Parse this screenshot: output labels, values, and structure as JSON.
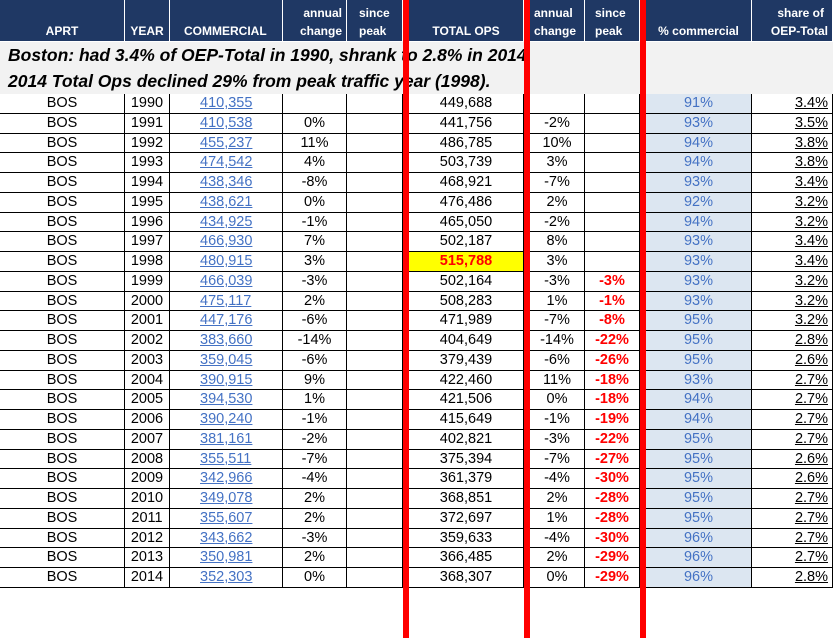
{
  "headers": {
    "aprt": {
      "line1": "",
      "line2": "APRT"
    },
    "year": {
      "line1": "",
      "line2": "YEAR"
    },
    "commercial": {
      "line1": "",
      "line2": "COMMERCIAL"
    },
    "annual_change": {
      "line1": "annual",
      "line2": "change"
    },
    "since_peak": {
      "line1": "since",
      "line2": "peak"
    },
    "total_ops": {
      "line1": "",
      "line2": "TOTAL OPS"
    },
    "annual_change_2": {
      "line1": "annual",
      "line2": "change"
    },
    "since_peak_2": {
      "line1": "since",
      "line2": "peak"
    },
    "pct_commercial": {
      "line1": "",
      "line2": "% commercial"
    },
    "share": {
      "line1": "share of",
      "line2": "OEP-Total"
    }
  },
  "banner": {
    "line1": "Boston: had 3.4% of OEP-Total in 1990, shrank to 2.8% in 2014.",
    "line2": "2014 Total Ops  declined 29% from peak traffic year (1998)."
  },
  "rows": [
    {
      "aprt": "BOS",
      "year": "1990",
      "commercial": "410,355",
      "comm_change": "",
      "comm_peak": "",
      "total": "449,688",
      "total_change": "",
      "total_peak": "",
      "pct_commercial": "91%",
      "share": "3.4%"
    },
    {
      "aprt": "BOS",
      "year": "1991",
      "commercial": "410,538",
      "comm_change": "0%",
      "comm_peak": "",
      "total": "441,756",
      "total_change": "-2%",
      "total_peak": "",
      "pct_commercial": "93%",
      "share": "3.5%"
    },
    {
      "aprt": "BOS",
      "year": "1992",
      "commercial": "455,237",
      "comm_change": "11%",
      "comm_peak": "",
      "total": "486,785",
      "total_change": "10%",
      "total_peak": "",
      "pct_commercial": "94%",
      "share": "3.8%"
    },
    {
      "aprt": "BOS",
      "year": "1993",
      "commercial": "474,542",
      "comm_change": "4%",
      "comm_peak": "",
      "total": "503,739",
      "total_change": "3%",
      "total_peak": "",
      "pct_commercial": "94%",
      "share": "3.8%"
    },
    {
      "aprt": "BOS",
      "year": "1994",
      "commercial": "438,346",
      "comm_change": "-8%",
      "comm_peak": "",
      "total": "468,921",
      "total_change": "-7%",
      "total_peak": "",
      "pct_commercial": "93%",
      "share": "3.4%"
    },
    {
      "aprt": "BOS",
      "year": "1995",
      "commercial": "438,621",
      "comm_change": "0%",
      "comm_peak": "",
      "total": "476,486",
      "total_change": "2%",
      "total_peak": "",
      "pct_commercial": "92%",
      "share": "3.2%"
    },
    {
      "aprt": "BOS",
      "year": "1996",
      "commercial": "434,925",
      "comm_change": "-1%",
      "comm_peak": "",
      "total": "465,050",
      "total_change": "-2%",
      "total_peak": "",
      "pct_commercial": "94%",
      "share": "3.2%"
    },
    {
      "aprt": "BOS",
      "year": "1997",
      "commercial": "466,930",
      "comm_change": "7%",
      "comm_peak": "",
      "total": "502,187",
      "total_change": "8%",
      "total_peak": "",
      "pct_commercial": "93%",
      "share": "3.4%"
    },
    {
      "aprt": "BOS",
      "year": "1998",
      "commercial": "480,915",
      "comm_change": "3%",
      "comm_peak": "",
      "total": "515,788",
      "total_change": "3%",
      "total_peak": "",
      "pct_commercial": "93%",
      "share": "3.4%",
      "peak": true
    },
    {
      "aprt": "BOS",
      "year": "1999",
      "commercial": "466,039",
      "comm_change": "-3%",
      "comm_peak": "",
      "total": "502,164",
      "total_change": "-3%",
      "total_peak": "-3%",
      "pct_commercial": "93%",
      "share": "3.2%"
    },
    {
      "aprt": "BOS",
      "year": "2000",
      "commercial": "475,117",
      "comm_change": "2%",
      "comm_peak": "",
      "total": "508,283",
      "total_change": "1%",
      "total_peak": "-1%",
      "pct_commercial": "93%",
      "share": "3.2%"
    },
    {
      "aprt": "BOS",
      "year": "2001",
      "commercial": "447,176",
      "comm_change": "-6%",
      "comm_peak": "",
      "total": "471,989",
      "total_change": "-7%",
      "total_peak": "-8%",
      "pct_commercial": "95%",
      "share": "3.2%"
    },
    {
      "aprt": "BOS",
      "year": "2002",
      "commercial": "383,660",
      "comm_change": "-14%",
      "comm_peak": "",
      "total": "404,649",
      "total_change": "-14%",
      "total_peak": "-22%",
      "pct_commercial": "95%",
      "share": "2.8%"
    },
    {
      "aprt": "BOS",
      "year": "2003",
      "commercial": "359,045",
      "comm_change": "-6%",
      "comm_peak": "",
      "total": "379,439",
      "total_change": "-6%",
      "total_peak": "-26%",
      "pct_commercial": "95%",
      "share": "2.6%"
    },
    {
      "aprt": "BOS",
      "year": "2004",
      "commercial": "390,915",
      "comm_change": "9%",
      "comm_peak": "",
      "total": "422,460",
      "total_change": "11%",
      "total_peak": "-18%",
      "pct_commercial": "93%",
      "share": "2.7%"
    },
    {
      "aprt": "BOS",
      "year": "2005",
      "commercial": "394,530",
      "comm_change": "1%",
      "comm_peak": "",
      "total": "421,506",
      "total_change": "0%",
      "total_peak": "-18%",
      "pct_commercial": "94%",
      "share": "2.7%"
    },
    {
      "aprt": "BOS",
      "year": "2006",
      "commercial": "390,240",
      "comm_change": "-1%",
      "comm_peak": "",
      "total": "415,649",
      "total_change": "-1%",
      "total_peak": "-19%",
      "pct_commercial": "94%",
      "share": "2.7%"
    },
    {
      "aprt": "BOS",
      "year": "2007",
      "commercial": "381,161",
      "comm_change": "-2%",
      "comm_peak": "",
      "total": "402,821",
      "total_change": "-3%",
      "total_peak": "-22%",
      "pct_commercial": "95%",
      "share": "2.7%"
    },
    {
      "aprt": "BOS",
      "year": "2008",
      "commercial": "355,511",
      "comm_change": "-7%",
      "comm_peak": "",
      "total": "375,394",
      "total_change": "-7%",
      "total_peak": "-27%",
      "pct_commercial": "95%",
      "share": "2.6%"
    },
    {
      "aprt": "BOS",
      "year": "2009",
      "commercial": "342,966",
      "comm_change": "-4%",
      "comm_peak": "",
      "total": "361,379",
      "total_change": "-4%",
      "total_peak": "-30%",
      "pct_commercial": "95%",
      "share": "2.6%"
    },
    {
      "aprt": "BOS",
      "year": "2010",
      "commercial": "349,078",
      "comm_change": "2%",
      "comm_peak": "",
      "total": "368,851",
      "total_change": "2%",
      "total_peak": "-28%",
      "pct_commercial": "95%",
      "share": "2.7%"
    },
    {
      "aprt": "BOS",
      "year": "2011",
      "commercial": "355,607",
      "comm_change": "2%",
      "comm_peak": "",
      "total": "372,697",
      "total_change": "1%",
      "total_peak": "-28%",
      "pct_commercial": "95%",
      "share": "2.7%"
    },
    {
      "aprt": "BOS",
      "year": "2012",
      "commercial": "343,662",
      "comm_change": "-3%",
      "comm_peak": "",
      "total": "359,633",
      "total_change": "-4%",
      "total_peak": "-30%",
      "pct_commercial": "96%",
      "share": "2.7%"
    },
    {
      "aprt": "BOS",
      "year": "2013",
      "commercial": "350,981",
      "comm_change": "2%",
      "comm_peak": "",
      "total": "366,485",
      "total_change": "2%",
      "total_peak": "-29%",
      "pct_commercial": "96%",
      "share": "2.7%"
    },
    {
      "aprt": "BOS",
      "year": "2014",
      "commercial": "352,303",
      "comm_change": "0%",
      "comm_peak": "",
      "total": "368,307",
      "total_change": "0%",
      "total_peak": "-29%",
      "pct_commercial": "96%",
      "share": "2.8%"
    }
  ],
  "colors": {
    "header_bg": "#1f3864",
    "divider_red": "#ff0000",
    "peak_highlight": "#ffff00",
    "pct_column_bg": "#dce6f1",
    "commercial_text": "#4472c4"
  }
}
